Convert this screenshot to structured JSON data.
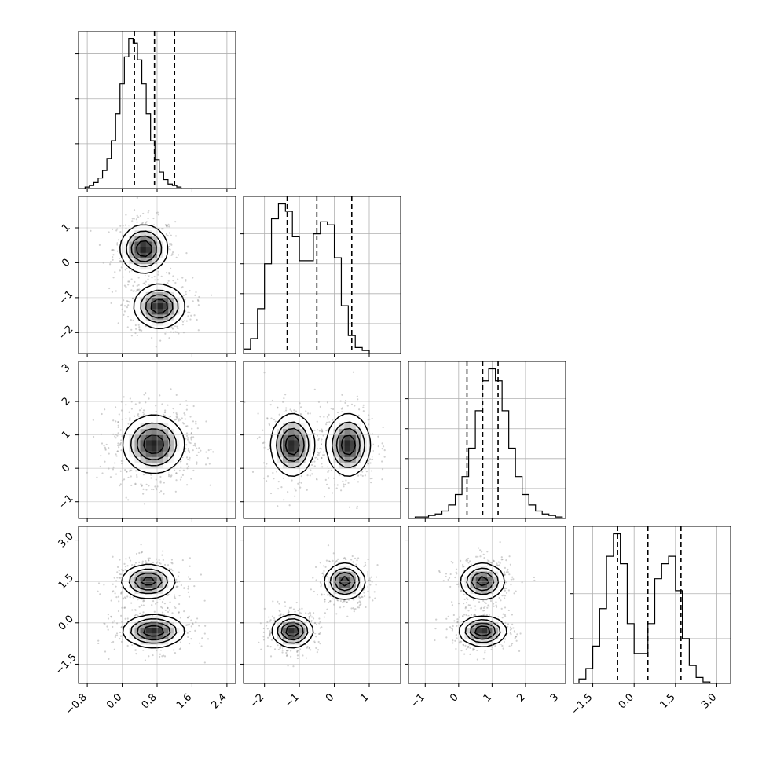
{
  "chart_data": {
    "type": "corner",
    "variables": 4,
    "grid": true,
    "axes": [
      {
        "range": [
          -1.0,
          2.6
        ],
        "ticks": [
          -0.8,
          0.0,
          0.8,
          1.6,
          2.4
        ],
        "tick_labels": [
          "−0.8",
          "0.0",
          "0.8",
          "1.6",
          "2.4"
        ]
      },
      {
        "range": [
          -2.6,
          1.9
        ],
        "ticks": [
          -2,
          -1,
          0,
          1
        ],
        "tick_labels": [
          "−2",
          "−1",
          "0",
          "1"
        ]
      },
      {
        "range": [
          -1.5,
          3.2
        ],
        "ticks": [
          -1,
          0,
          1,
          2,
          3
        ],
        "tick_labels": [
          "−1",
          "0",
          "1",
          "2",
          "3"
        ]
      },
      {
        "range": [
          -2.2,
          3.5
        ],
        "ticks": [
          -1.5,
          0.0,
          1.5,
          3.0
        ],
        "tick_labels": [
          "−1.5",
          "0.0",
          "1.5",
          "3.0"
        ]
      }
    ],
    "histograms": [
      {
        "bin_start": -0.85,
        "bin_width": 0.1,
        "counts": [
          1,
          2,
          4,
          7,
          12,
          20,
          32,
          50,
          70,
          88,
          100,
          97,
          86,
          70,
          50,
          32,
          19,
          11,
          6,
          3,
          2,
          1
        ],
        "quantiles": [
          0.28,
          0.74,
          1.2
        ],
        "y_ticks": [
          30,
          60,
          90
        ]
      },
      {
        "bin_start": -2.6,
        "bin_width": 0.2,
        "counts": [
          3,
          10,
          30,
          60,
          90,
          100,
          95,
          78,
          62,
          62,
          80,
          88,
          86,
          64,
          32,
          12,
          4,
          2
        ],
        "quantiles": [
          -1.35,
          -0.5,
          0.5
        ],
        "y_ticks": [
          20,
          40,
          60,
          80
        ]
      },
      {
        "bin_start": -1.3,
        "bin_width": 0.2,
        "counts": [
          1,
          1,
          2,
          3,
          5,
          9,
          16,
          28,
          47,
          72,
          92,
          100,
          92,
          72,
          47,
          28,
          16,
          9,
          5,
          3,
          2,
          1
        ],
        "quantiles": [
          0.25,
          0.72,
          1.18
        ],
        "y_ticks": [
          20,
          40,
          60,
          80
        ]
      },
      {
        "bin_start": -2.0,
        "bin_width": 0.25,
        "counts": [
          3,
          10,
          25,
          50,
          85,
          100,
          80,
          40,
          20,
          20,
          40,
          70,
          80,
          85,
          62,
          30,
          12,
          4,
          1
        ],
        "quantiles": [
          -0.6,
          0.5,
          1.7
        ],
        "y_ticks": [
          30,
          60
        ]
      }
    ],
    "pairs": [
      {
        "x_var": 0,
        "y_var": 1,
        "peaks": [
          {
            "x": 0.5,
            "y": 0.4,
            "sx": 0.26,
            "sy": 0.33,
            "w": 1.0
          },
          {
            "x": 0.85,
            "y": -1.25,
            "sx": 0.28,
            "sy": 0.3,
            "w": 1.0
          }
        ]
      },
      {
        "x_var": 0,
        "y_var": 2,
        "peaks": [
          {
            "x": 0.72,
            "y": 0.72,
            "sx": 0.34,
            "sy": 0.42,
            "w": 1.0
          }
        ]
      },
      {
        "x_var": 1,
        "y_var": 2,
        "peaks": [
          {
            "x": -1.2,
            "y": 0.7,
            "sx": 0.3,
            "sy": 0.45,
            "w": 1.0
          },
          {
            "x": 0.4,
            "y": 0.7,
            "sx": 0.3,
            "sy": 0.45,
            "w": 1.0
          }
        ]
      },
      {
        "x_var": 0,
        "y_var": 3,
        "peaks": [
          {
            "x": 0.6,
            "y": 1.5,
            "sx": 0.3,
            "sy": 0.3,
            "w": 0.9
          },
          {
            "x": 0.72,
            "y": -0.3,
            "sx": 0.34,
            "sy": 0.28,
            "w": 1.0
          }
        ]
      },
      {
        "x_var": 1,
        "y_var": 3,
        "peaks": [
          {
            "x": 0.3,
            "y": 1.5,
            "sx": 0.28,
            "sy": 0.32,
            "w": 0.9
          },
          {
            "x": -1.2,
            "y": -0.3,
            "sx": 0.28,
            "sy": 0.28,
            "w": 1.0
          }
        ]
      },
      {
        "x_var": 2,
        "y_var": 3,
        "peaks": [
          {
            "x": 0.72,
            "y": 1.5,
            "sx": 0.32,
            "sy": 0.32,
            "w": 0.9
          },
          {
            "x": 0.72,
            "y": -0.3,
            "sx": 0.34,
            "sy": 0.26,
            "w": 1.0
          }
        ]
      }
    ]
  }
}
